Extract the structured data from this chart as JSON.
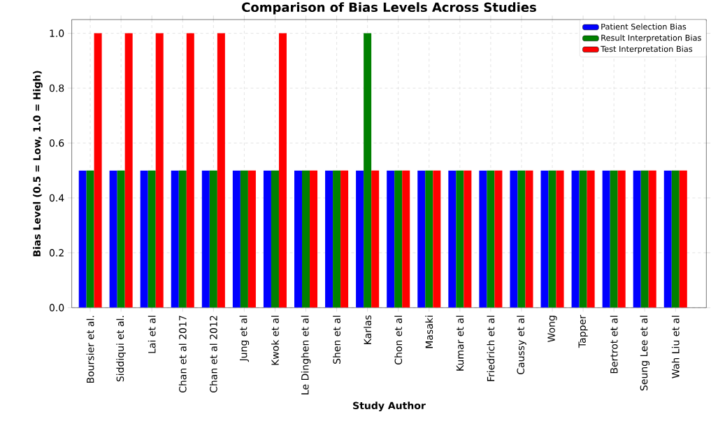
{
  "chart_data": {
    "type": "bar",
    "title": "Comparison of Bias Levels Across Studies",
    "xlabel": "Study Author",
    "ylabel": "Bias Level (0.5 = Low, 1.0 = High)",
    "categories": [
      "Boursier et al.",
      "Siddiqui et al.",
      "Lai et al",
      "Chan et al 2017",
      "Chan et al 2012",
      "Jung et al",
      "Kwok et al",
      "Le Dinghen et al",
      "Shen et al",
      "Karlas",
      "Chon et al",
      "Masaki",
      "Kumar et al",
      "Friedrich et al",
      "Caussy et al",
      "Wong",
      "Tapper",
      "Bertrot et al",
      "Seung Lee et al",
      "Wah Liu et al"
    ],
    "series": [
      {
        "name": "Patient Selection Bias",
        "color": "#0000ff",
        "values": [
          0.5,
          0.5,
          0.5,
          0.5,
          0.5,
          0.5,
          0.5,
          0.5,
          0.5,
          0.5,
          0.5,
          0.5,
          0.5,
          0.5,
          0.5,
          0.5,
          0.5,
          0.5,
          0.5,
          0.5
        ]
      },
      {
        "name": "Result Interpretation Bias",
        "color": "#008000",
        "values": [
          0.5,
          0.5,
          0.5,
          0.5,
          0.5,
          0.5,
          0.5,
          0.5,
          0.5,
          1.0,
          0.5,
          0.5,
          0.5,
          0.5,
          0.5,
          0.5,
          0.5,
          0.5,
          0.5,
          0.5
        ]
      },
      {
        "name": "Test Interpretation Bias",
        "color": "#ff0000",
        "values": [
          1.0,
          1.0,
          1.0,
          1.0,
          1.0,
          0.5,
          1.0,
          0.5,
          0.5,
          0.5,
          0.5,
          0.5,
          0.5,
          0.5,
          0.5,
          0.5,
          0.5,
          0.5,
          0.5,
          0.5
        ]
      }
    ],
    "ylim": [
      0,
      1.05
    ],
    "yticks": [
      {
        "value": 0,
        "label": "0.0"
      },
      {
        "value": 0.2,
        "label": "0.2"
      },
      {
        "value": 0.4,
        "label": "0.4"
      },
      {
        "value": 0.6,
        "label": "0.6"
      },
      {
        "value": 0.8,
        "label": "0.8"
      },
      {
        "value": 1.0,
        "label": "1.0"
      }
    ],
    "grid": true,
    "legend": "top right"
  }
}
